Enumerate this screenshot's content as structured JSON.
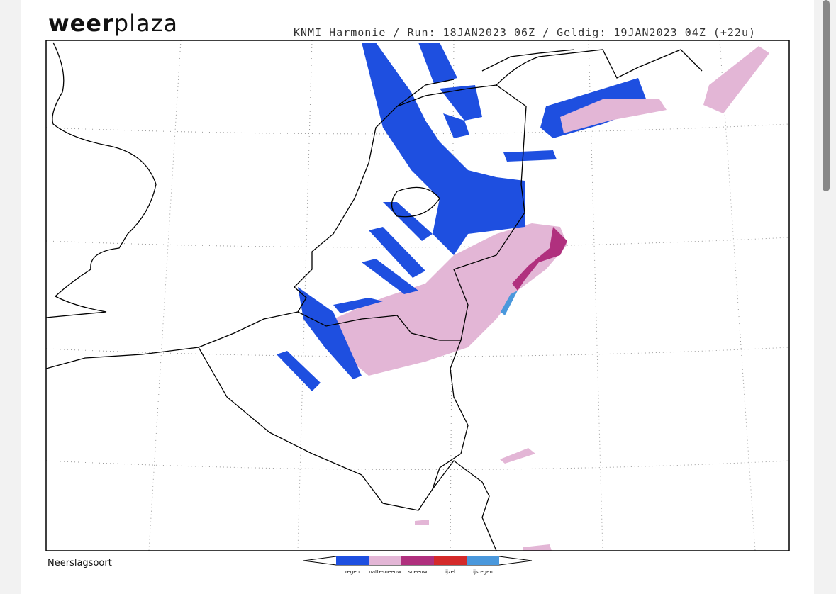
{
  "header": {
    "logo": {
      "bold": "weer",
      "light": "plaza"
    },
    "info": "KNMI Harmonie / Run: 18JAN2023 06Z / Geldig: 19JAN2023 04Z (+22u)"
  },
  "legend": {
    "title": "Neerslagsoort",
    "items": [
      {
        "label": "regen",
        "color": "#1e4fe0"
      },
      {
        "label": "nattesneeuw",
        "color": "#e3b6d6"
      },
      {
        "label": "sneeuw",
        "color": "#b0307e"
      },
      {
        "label": "ijzel",
        "color": "#d42a2a"
      },
      {
        "label": "ijsregen",
        "color": "#4a98dc"
      }
    ]
  }
}
